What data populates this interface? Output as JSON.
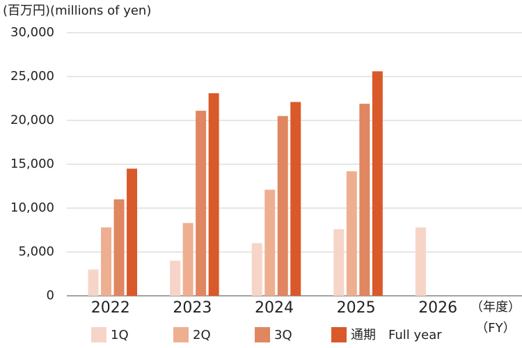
{
  "chart_data": {
    "type": "bar",
    "title": "(百万円)(millions of yen)",
    "x_unit": [
      "（年度）",
      "（FY）"
    ],
    "categories": [
      "2022",
      "2023",
      "2024",
      "2025",
      "2026"
    ],
    "series": [
      {
        "name": "1Q",
        "color": "#f6d5c8",
        "values": [
          3000,
          4000,
          6000,
          7600,
          7800
        ]
      },
      {
        "name": "2Q",
        "color": "#eeaf91",
        "values": [
          7800,
          8300,
          12100,
          14200,
          null
        ]
      },
      {
        "name": "3Q",
        "color": "#e08660",
        "values": [
          11000,
          21100,
          20500,
          21900,
          null
        ]
      },
      {
        "name": "通期　Full year",
        "color": "#d9592a",
        "values": [
          14500,
          23100,
          22100,
          25600,
          null
        ]
      }
    ],
    "ylim": [
      0,
      30000
    ],
    "yticks": [
      0,
      {
        "value": 5000,
        "label": "5,000"
      },
      {
        "value": 10000,
        "label": "10,000"
      },
      {
        "value": 15000,
        "label": "15,000"
      },
      {
        "value": 20000,
        "label": "20,000"
      },
      {
        "value": 25000,
        "label": "25,000"
      },
      {
        "value": 30000,
        "label": "30,000"
      }
    ],
    "grid": true
  }
}
